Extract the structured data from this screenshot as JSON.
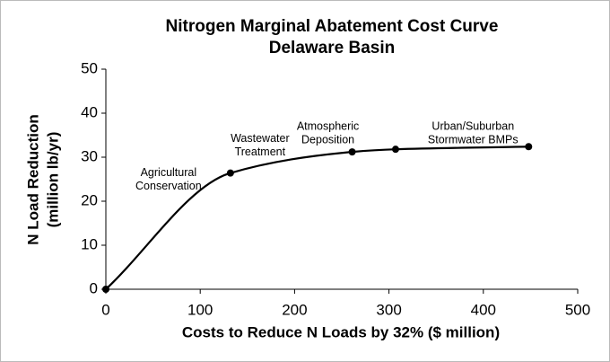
{
  "chart_data": {
    "type": "line",
    "title": [
      "Nitrogen Marginal Abatement Cost Curve",
      "Delaware Basin"
    ],
    "xlabel": "Costs to Reduce N Loads by 32% ($ million)",
    "ylabel": [
      "N Load Reduction",
      "(million lb/yr)"
    ],
    "x": [
      0,
      132,
      261,
      307,
      448
    ],
    "series": [
      {
        "name": "N load reduction",
        "color": "#000000",
        "values": [
          0,
          26.4,
          31.2,
          31.8,
          32.4
        ]
      }
    ],
    "xlim": [
      0,
      500
    ],
    "xticks": [
      0,
      100,
      200,
      300,
      400,
      500
    ],
    "ylim": [
      0,
      50
    ],
    "yticks": [
      0,
      10,
      20,
      30,
      40,
      50
    ],
    "annotations": [
      {
        "text": [
          "Agricultural",
          "Conservation"
        ],
        "x": 132,
        "y": 26.4
      },
      {
        "text": [
          "Wastewater",
          "Treatment"
        ],
        "x": 132,
        "y": 26.4
      },
      {
        "text": [
          "Atmospheric",
          "Deposition"
        ],
        "x": 261,
        "y": 31.2
      },
      {
        "text": [
          "Urban/Suburban",
          "Stormwater  BMPs"
        ],
        "x": 448,
        "y": 32.4
      }
    ]
  }
}
